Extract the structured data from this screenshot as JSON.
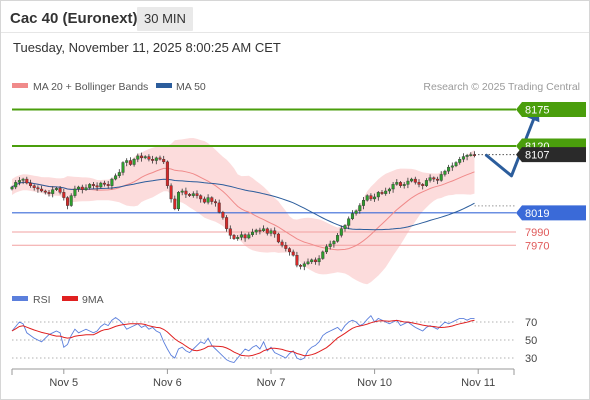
{
  "header": {
    "instrument": "Cac 40 (Euronext)",
    "timeframe": "30 MIN",
    "datetime": "Tuesday, November 11, 2025 8:00:25 AM CET"
  },
  "legend": {
    "ma20": "MA 20 + Bollinger Bands",
    "ma50": "MA 50",
    "copyright": "Research © 2025 Trading Central",
    "rsi": "RSI",
    "rsi_ma": "9MA"
  },
  "colors": {
    "green": "#4a9e0c",
    "blue": "#3a6ad8",
    "red": "#e05a5a",
    "dark": "#2a2a2a",
    "arrow": "#2c5d9c",
    "ma20": "#f08a8a",
    "ma50": "#2c5d9c",
    "band": "#fbd6d6",
    "up": "#2e9e2e",
    "down": "#d62828",
    "rsi": "#5b7fdc",
    "rsi_ma": "#e02020"
  },
  "levels": [
    {
      "value": 8175,
      "label": "8175",
      "style": "green-box"
    },
    {
      "value": 8120,
      "label": "8120",
      "style": "green-box"
    },
    {
      "value": 8107,
      "label": "8107",
      "style": "dark-box"
    },
    {
      "value": 8019,
      "label": "8019",
      "style": "blue-box"
    },
    {
      "value": 7990,
      "label": "7990",
      "style": "red-text"
    },
    {
      "value": 7970,
      "label": "7970",
      "style": "red-text"
    }
  ],
  "rsi_ticks": [
    {
      "value": 70,
      "label": "70"
    },
    {
      "value": 50,
      "label": "50"
    },
    {
      "value": 30,
      "label": "30"
    }
  ],
  "chart_data": {
    "type": "candlestick",
    "ylim": [
      7910,
      8200
    ],
    "x_ticks": [
      {
        "index": 14,
        "label": "Nov 5"
      },
      {
        "index": 42,
        "label": "Nov 6"
      },
      {
        "index": 70,
        "label": "Nov 7"
      },
      {
        "index": 98,
        "label": "Nov 10"
      },
      {
        "index": 126,
        "label": "Nov 11"
      }
    ],
    "closes": [
      8058,
      8065,
      8068,
      8070,
      8064,
      8060,
      8057,
      8055,
      8052,
      8050,
      8048,
      8054,
      8056,
      8050,
      8042,
      8030,
      8045,
      8055,
      8058,
      8054,
      8057,
      8062,
      8060,
      8058,
      8064,
      8062,
      8060,
      8070,
      8075,
      8080,
      8095,
      8098,
      8092,
      8100,
      8105,
      8102,
      8104,
      8100,
      8098,
      8102,
      8100,
      8096,
      8060,
      8040,
      8025,
      8050,
      8052,
      8047,
      8045,
      8048,
      8045,
      8040,
      8035,
      8042,
      8036,
      8034,
      8020,
      8012,
      7995,
      7985,
      7980,
      7982,
      7986,
      7981,
      7986,
      7990,
      7993,
      7992,
      7995,
      7988,
      7992,
      7987,
      7975,
      7970,
      7965,
      7960,
      7955,
      7940,
      7938,
      7942,
      7945,
      7948,
      7945,
      7950,
      7960,
      7968,
      7972,
      7976,
      7985,
      7995,
      8000,
      8010,
      8018,
      8022,
      8030,
      8038,
      8045,
      8040,
      8043,
      8050,
      8048,
      8052,
      8055,
      8062,
      8065,
      8060,
      8062,
      8067,
      8070,
      8065,
      8062,
      8060,
      8068,
      8072,
      8070,
      8068,
      8077,
      8082,
      8088,
      8090,
      8095,
      8100,
      8104,
      8106,
      8107,
      8106
    ],
    "forecast_path": [
      {
        "index": 128,
        "value": 8107
      },
      {
        "index": 135,
        "value": 8075
      },
      {
        "index": 142,
        "value": 8175
      }
    ],
    "rsi": [
      60,
      65,
      70,
      68,
      58,
      55,
      52,
      50,
      48,
      52,
      56,
      58,
      60,
      58,
      42,
      45,
      55,
      62,
      58,
      60,
      62,
      60,
      58,
      60,
      65,
      68,
      66,
      72,
      75,
      72,
      68,
      62,
      64,
      66,
      68,
      64,
      66,
      62,
      64,
      60,
      58,
      48,
      40,
      33,
      30,
      40,
      42,
      38,
      36,
      40,
      44,
      48,
      46,
      52,
      44,
      40,
      36,
      32,
      28,
      26,
      25,
      30,
      35,
      40,
      38,
      42,
      44,
      40,
      48,
      38,
      42,
      36,
      34,
      32,
      30,
      35,
      38,
      30,
      28,
      30,
      38,
      42,
      44,
      48,
      55,
      58,
      60,
      62,
      64,
      60,
      66,
      70,
      72,
      70,
      66,
      68,
      73,
      77,
      70,
      74,
      72,
      70,
      68,
      70,
      72,
      66,
      68,
      70,
      67,
      64,
      62,
      60,
      64,
      66,
      64,
      62,
      66,
      70,
      68,
      70,
      72,
      74,
      74,
      72,
      74,
      74
    ],
    "rsi_ylim": [
      20,
      80
    ]
  }
}
